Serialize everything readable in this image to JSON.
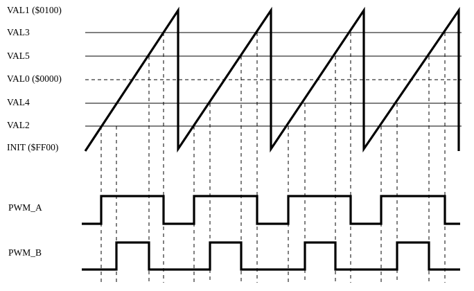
{
  "levels": [
    {
      "key": "val1",
      "label": "VAL1 ($0100)"
    },
    {
      "key": "val3",
      "label": "VAL3"
    },
    {
      "key": "val5",
      "label": "VAL5"
    },
    {
      "key": "val0",
      "label": "VAL0 ($0000)"
    },
    {
      "key": "val4",
      "label": "VAL4"
    },
    {
      "key": "val2",
      "label": "VAL2"
    },
    {
      "key": "init",
      "label": "INIT ($FF00)"
    }
  ],
  "signals": {
    "pwm_a": "PWM_A",
    "pwm_b": "PWM_B"
  }
}
